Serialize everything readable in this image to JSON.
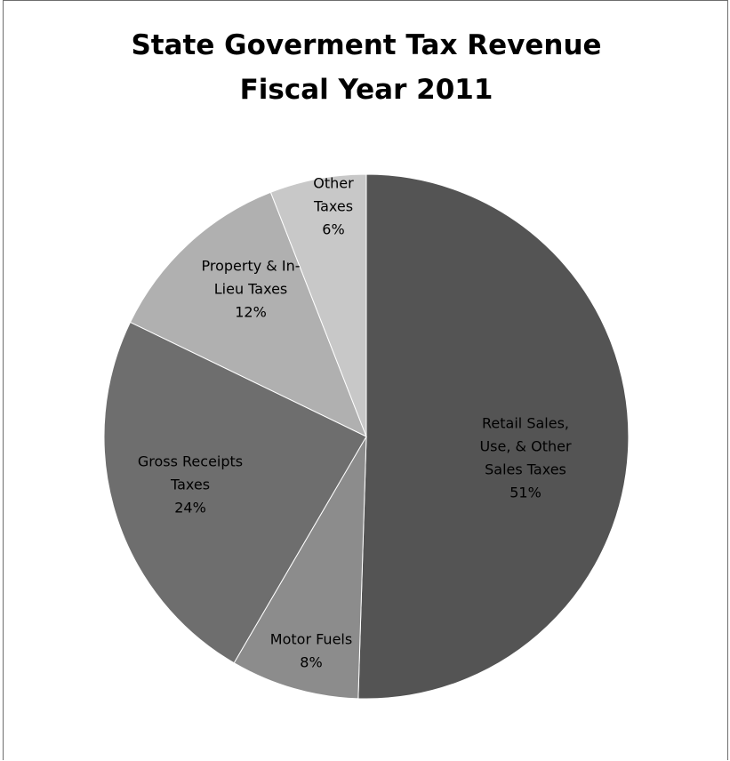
{
  "chart_data": {
    "type": "pie",
    "title": "State Goverment Tax Revenue",
    "subtitle": "Fiscal Year 2011",
    "start_angle_deg": 0,
    "direction": "clockwise",
    "slices": [
      {
        "label_lines": [
          "Retail Sales,",
          "Use, & Other",
          "Sales Taxes"
        ],
        "percent_label": "51%",
        "value": 51,
        "color": "#545454"
      },
      {
        "label_lines": [
          "Motor Fuels"
        ],
        "percent_label": "8%",
        "value": 8,
        "color": "#8c8c8c"
      },
      {
        "label_lines": [
          "Gross Receipts",
          "Taxes"
        ],
        "percent_label": "24%",
        "value": 24,
        "color": "#6e6e6e"
      },
      {
        "label_lines": [
          "Property & In-",
          "Lieu Taxes"
        ],
        "percent_label": "12%",
        "value": 12,
        "color": "#b0b0b0"
      },
      {
        "label_lines": [
          "Other",
          "Taxes"
        ],
        "percent_label": "6%",
        "value": 6,
        "color": "#c8c8c8"
      }
    ]
  }
}
